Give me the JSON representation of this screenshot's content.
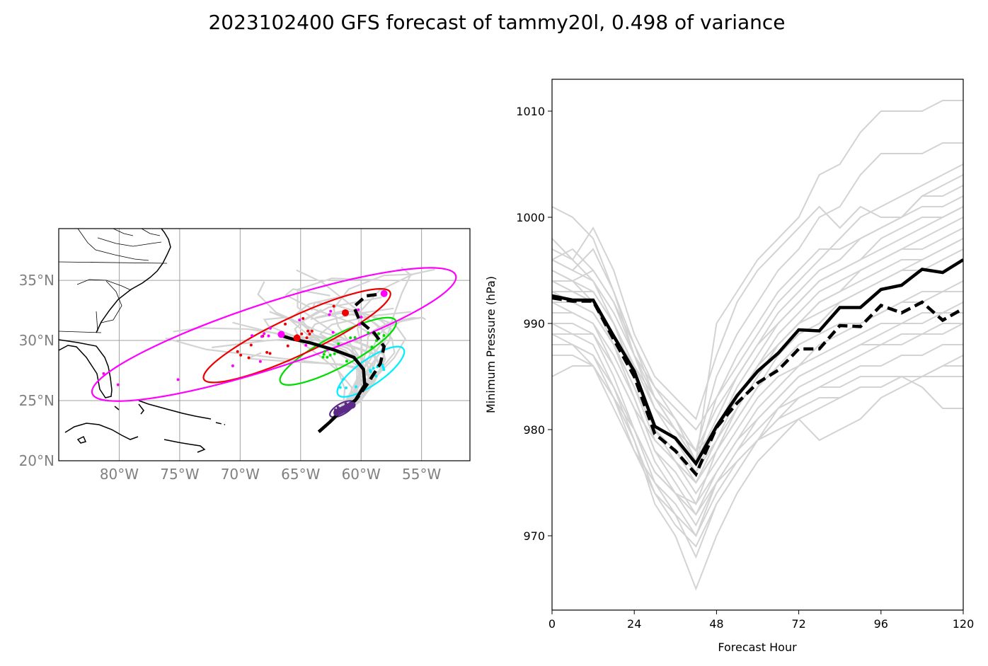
{
  "figure_title": "2023102400 GFS forecast of tammy20l, 0.498 of variance",
  "chart_data": [
    {
      "type": "map",
      "name": "track-map",
      "xlim": [
        -85,
        -51
      ],
      "ylim": [
        20,
        39.3
      ],
      "x_ticks": [
        -80,
        -75,
        -70,
        -65,
        -60,
        -55
      ],
      "x_tick_labels": [
        "80°W",
        "75°W",
        "70°W",
        "65°W",
        "60°W",
        "55°W"
      ],
      "y_ticks": [
        20,
        25,
        30,
        35
      ],
      "y_tick_labels": [
        "20°N",
        "25°N",
        "30°N",
        "35°N"
      ],
      "grid": true,
      "colors": {
        "ensemble": "#d3d3d3",
        "mean_track": "#000000",
        "ellipse_purple": "#5b2a86",
        "ellipse_cyan": "#00eeff",
        "ellipse_green": "#00dd00",
        "ellipse_red": "#ee0000",
        "ellipse_magenta": "#ff00ff"
      },
      "mean_track_solid": [
        [
          -63.5,
          22.4
        ],
        [
          -62.6,
          23.2
        ],
        [
          -61.6,
          24.2
        ],
        [
          -60.5,
          25.0
        ],
        [
          -59.7,
          26.3
        ],
        [
          -59.8,
          27.6
        ],
        [
          -60.6,
          28.6
        ],
        [
          -62.2,
          29.2
        ],
        [
          -64.2,
          29.8
        ],
        [
          -65.6,
          30.1
        ],
        [
          -66.6,
          30.4
        ]
      ],
      "mean_track_dashed": [
        [
          -63.5,
          22.4
        ],
        [
          -62.6,
          23.2
        ],
        [
          -61.6,
          24.2
        ],
        [
          -60.4,
          25.1
        ],
        [
          -59.4,
          26.5
        ],
        [
          -58.4,
          28.1
        ],
        [
          -58.1,
          29.5
        ],
        [
          -58.9,
          30.6
        ],
        [
          -60.1,
          31.6
        ],
        [
          -60.6,
          32.8
        ],
        [
          -59.6,
          33.7
        ],
        [
          -58.1,
          33.9
        ]
      ],
      "mean_points": [
        {
          "lon": -65.3,
          "lat": 30.2,
          "color": "red"
        },
        {
          "lon": -66.6,
          "lat": 30.5,
          "color": "magenta"
        },
        {
          "lon": -61.3,
          "lat": 32.3,
          "color": "red"
        },
        {
          "lon": -58.1,
          "lat": 33.9,
          "color": "magenta"
        }
      ],
      "ellipses": [
        {
          "lon": -61.6,
          "lat": 24.3,
          "rx_deg": 1.1,
          "ry_deg": 0.45,
          "angle": 30,
          "color": "purple"
        },
        {
          "lon": -59.2,
          "lat": 27.4,
          "rx_deg": 3.3,
          "ry_deg": 1.05,
          "angle": 35,
          "color": "cyan"
        },
        {
          "lon": -61.9,
          "lat": 29.1,
          "rx_deg": 5.4,
          "ry_deg": 1.3,
          "angle": 28,
          "color": "green"
        },
        {
          "lon": -65.3,
          "lat": 30.4,
          "rx_deg": 8.5,
          "ry_deg": 1.6,
          "angle": 25,
          "color": "red"
        },
        {
          "lon": -67.2,
          "lat": 30.5,
          "rx_deg": 15.8,
          "ry_deg": 2.7,
          "angle": 18,
          "color": "magenta"
        }
      ]
    },
    {
      "type": "line",
      "name": "pressure-chart",
      "xlabel": "Forecast Hour",
      "ylabel": "Minimum Pressure (hPa)",
      "xlim": [
        0,
        120
      ],
      "ylim": [
        963,
        1013
      ],
      "x_ticks": [
        0,
        24,
        48,
        72,
        96,
        120
      ],
      "y_ticks": [
        970,
        980,
        990,
        1000,
        1010
      ],
      "x": [
        0,
        6,
        12,
        18,
        24,
        30,
        36,
        42,
        48,
        54,
        60,
        66,
        72,
        78,
        84,
        90,
        96,
        102,
        108,
        114,
        120
      ],
      "mean_solid": [
        992.6,
        992.2,
        992.2,
        988.8,
        985.5,
        980.3,
        979.2,
        976.8,
        980.3,
        983.2,
        985.5,
        987.2,
        989.4,
        989.3,
        991.5,
        991.5,
        993.2,
        993.6,
        995.1,
        994.8,
        996.0
      ],
      "mean_dashed": [
        992.4,
        992.1,
        992.1,
        988.5,
        985.0,
        979.6,
        978.0,
        975.8,
        980.2,
        982.5,
        984.4,
        985.6,
        987.6,
        987.6,
        989.8,
        989.7,
        991.7,
        991.0,
        992.0,
        990.3,
        991.4
      ],
      "members": [
        [
          1001,
          1000,
          998,
          993,
          987,
          982,
          980,
          977,
          990,
          993,
          996,
          998,
          1000,
          1004,
          1005,
          1008,
          1010,
          1010,
          1010,
          1011,
          1011
        ],
        [
          998,
          996,
          994,
          990,
          986,
          983,
          981,
          978,
          985,
          989,
          992,
          995,
          997,
          1000,
          1001,
          1004,
          1006,
          1006,
          1006,
          1007,
          1007
        ],
        [
          996,
          995,
          994,
          991,
          987,
          984,
          982,
          980,
          983,
          986,
          989,
          992,
          994,
          996,
          998,
          1000,
          1001,
          1002,
          1003,
          1004,
          1005
        ],
        [
          995,
          994,
          992,
          988,
          983,
          978,
          976,
          973,
          978,
          982,
          985,
          988,
          990,
          992,
          993,
          995,
          996,
          997,
          998,
          999,
          1000
        ],
        [
          994,
          993,
          992,
          989,
          986,
          982,
          980,
          978,
          980,
          983,
          986,
          988,
          990,
          991,
          992,
          993,
          994,
          995,
          996,
          997,
          998
        ],
        [
          993,
          992,
          991,
          988,
          984,
          979,
          977,
          974,
          977,
          980,
          983,
          985,
          986,
          988,
          989,
          990,
          991,
          992,
          993,
          993,
          994
        ],
        [
          992,
          991,
          990,
          986,
          982,
          977,
          974,
          971,
          975,
          978,
          981,
          983,
          985,
          986,
          987,
          988,
          989,
          990,
          990,
          991,
          991
        ],
        [
          990,
          990,
          989,
          985,
          980,
          975,
          972,
          968,
          973,
          976,
          979,
          981,
          983,
          984,
          985,
          986,
          986,
          987,
          987,
          988,
          988
        ],
        [
          989,
          988,
          987,
          983,
          979,
          973,
          970,
          965,
          970,
          974,
          977,
          979,
          981,
          982,
          983,
          984,
          984,
          985,
          985,
          986,
          986
        ],
        [
          988,
          988,
          986,
          983,
          978,
          975,
          973,
          970,
          975,
          978,
          980,
          982,
          983,
          984,
          984,
          985,
          985,
          985,
          985,
          985,
          985
        ],
        [
          997,
          996,
          999,
          995,
          989,
          985,
          983,
          981,
          987,
          992,
          995,
          997,
          999,
          1001,
          999,
          1001,
          1000,
          1000,
          1002,
          1002,
          1003
        ],
        [
          996,
          997,
          995,
          992,
          988,
          984,
          981,
          977,
          983,
          987,
          990,
          993,
          995,
          997,
          997,
          998,
          999,
          1000,
          1001,
          1001,
          1002
        ],
        [
          994,
          994,
          993,
          990,
          985,
          980,
          978,
          975,
          979,
          983,
          986,
          989,
          991,
          993,
          994,
          995,
          996,
          997,
          997,
          998,
          999
        ],
        [
          995,
          994,
          995,
          992,
          987,
          983,
          980,
          978,
          982,
          985,
          988,
          990,
          992,
          994,
          995,
          996,
          997,
          998,
          999,
          1000,
          1001
        ],
        [
          991,
          991,
          990,
          987,
          983,
          978,
          975,
          972,
          976,
          979,
          982,
          984,
          986,
          987,
          988,
          989,
          990,
          990,
          991,
          991,
          992
        ],
        [
          993,
          993,
          992,
          989,
          985,
          980,
          977,
          975,
          978,
          981,
          984,
          987,
          989,
          990,
          992,
          993,
          994,
          995,
          995,
          996,
          997
        ],
        [
          990,
          989,
          988,
          984,
          979,
          974,
          971,
          969,
          973,
          976,
          979,
          982,
          984,
          985,
          986,
          987,
          988,
          988,
          989,
          989,
          990
        ],
        [
          992,
          992,
          991,
          988,
          984,
          980,
          978,
          976,
          979,
          982,
          985,
          988,
          990,
          992,
          993,
          994,
          995,
          996,
          996,
          997,
          998
        ],
        [
          987,
          987,
          986,
          982,
          978,
          974,
          972,
          970,
          974,
          977,
          979,
          980,
          981,
          979,
          980,
          981,
          983,
          984,
          985,
          986,
          987
        ],
        [
          994,
          993,
          993,
          990,
          986,
          982,
          979,
          976,
          980,
          984,
          987,
          990,
          992,
          994,
          995,
          996,
          998,
          999,
          1000,
          1000,
          1001
        ],
        [
          988,
          988,
          987,
          984,
          980,
          976,
          974,
          972,
          975,
          977,
          979,
          981,
          982,
          983,
          983,
          984,
          984,
          985,
          984,
          982,
          982
        ],
        [
          985,
          986,
          986,
          983,
          980,
          976,
          974,
          973,
          976,
          979,
          981,
          983,
          985,
          986,
          987,
          988,
          988,
          989,
          989,
          990,
          990
        ],
        [
          996,
          995,
          997,
          993,
          988,
          983,
          980,
          977,
          981,
          985,
          988,
          991,
          993,
          995,
          996,
          998,
          999,
          1000,
          1002,
          1003,
          1004
        ],
        [
          989,
          989,
          989,
          986,
          982,
          979,
          977,
          975,
          978,
          981,
          984,
          986,
          988,
          989,
          990,
          990,
          991,
          992,
          992,
          993,
          993
        ]
      ]
    }
  ]
}
